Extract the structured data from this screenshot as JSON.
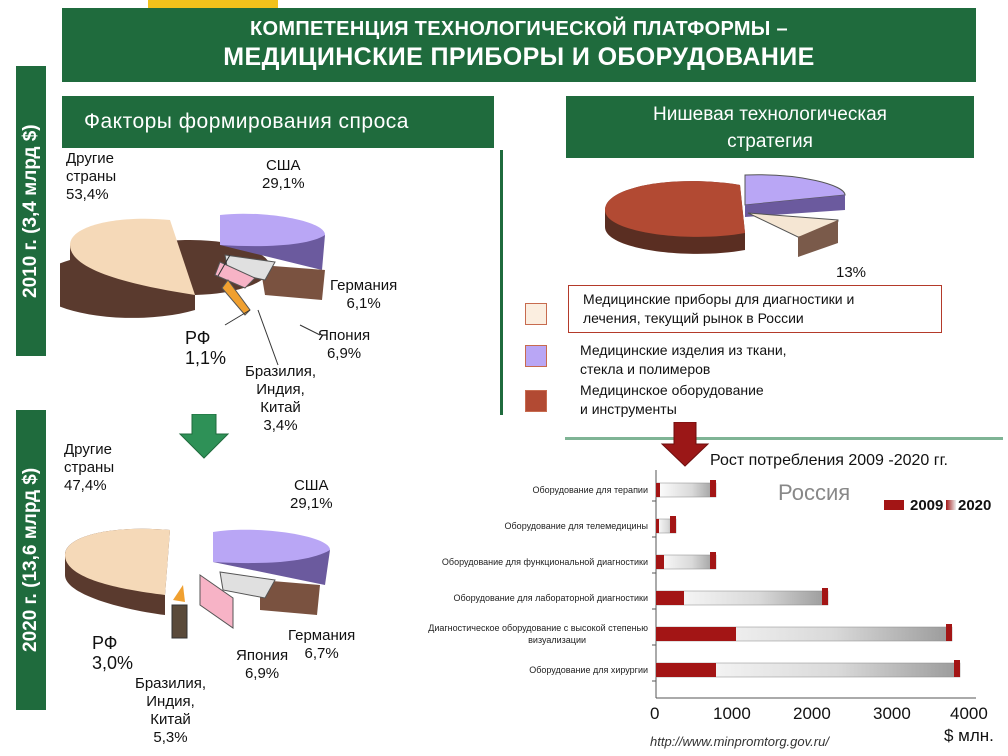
{
  "header": {
    "line1": "КОМПЕТЕНЦИЯ ТЕХНОЛОГИЧЕСКОЙ ПЛАТФОРМЫ –",
    "line2": "МЕДИЦИНСКИЕ ПРИБОРЫ И ОБОРУДОВАНИЕ"
  },
  "side": {
    "y2010": "2010 г. (3,4 млрд $)",
    "y2020": "2020 г. (13,6 млрд $)"
  },
  "factors_title": "Факторы формирования спроса",
  "niche_title_l1": "Нишевая технологическая",
  "niche_title_l2": "стратегия",
  "pie2010": {
    "other_l1": "Другие",
    "other_l2": "страны",
    "other_l3": "53,4%",
    "usa_l1": "США",
    "usa_l2": "29,1%",
    "germany_l1": "Германия",
    "germany_l2": "6,1%",
    "japan_l1": "Япония",
    "japan_l2": "6,9%",
    "rf_l1": "РФ",
    "rf_l2": "1,1%",
    "bic_l1": "Бразилия,",
    "bic_l2": "Индия,",
    "bic_l3": "Китай",
    "bic_l4": "3,4%"
  },
  "pie2020": {
    "other_l1": "Другие",
    "other_l2": "страны",
    "other_l3": "47,4%",
    "usa_l1": "США",
    "usa_l2": "29,1%",
    "germany_l1": "Германия",
    "germany_l2": "6,7%",
    "japan_l1": "Япония",
    "japan_l2": "6,9%",
    "rf_l1": "РФ",
    "rf_l2": "3,0%",
    "bic_l1": "Бразилия,",
    "bic_l2": "Индия,",
    "bic_l3": "Китай",
    "bic_l4": "5,3%"
  },
  "niche_pie": {
    "label": "13%"
  },
  "legend": {
    "item1_l1": "Медицинские приборы для диагностики и",
    "item1_l2": "лечения, текущий рынок в России",
    "item2_l1": "Медицинские изделия из ткани,",
    "item2_l2": "стекла и полимеров",
    "item3_l1": "Медицинское оборудование",
    "item3_l2": "и инструменты"
  },
  "growth": {
    "title": "Рост потребления 2009 -2020 гг.",
    "region": "Россия",
    "unit": "$ млн.",
    "url": "http://www.minpromtorg.gov.ru/"
  },
  "colors": {
    "green": "#1f6b3d",
    "other": "#f5d9b8",
    "usa": "#a98ef2",
    "equipment": "#b24a33",
    "bar2009": "#a31515",
    "bar2020": "#d8d8d8"
  },
  "chart_data": [
    {
      "type": "pie",
      "title": "",
      "categories": [
        "Другие страны",
        "США",
        "Германия",
        "Япония",
        "Бразилия, Индия, Китай",
        "РФ"
      ],
      "values": [
        53.4,
        29.1,
        6.1,
        6.9,
        3.4,
        1.1
      ]
    },
    {
      "type": "pie",
      "title": "",
      "categories": [
        "Другие страны",
        "США",
        "Германия",
        "Япония",
        "Бразилия, Индия, Китай",
        "РФ"
      ],
      "values": [
        47.4,
        29.1,
        6.7,
        6.9,
        5.3,
        3.0
      ]
    },
    {
      "type": "pie",
      "title": "",
      "categories": [
        "Медицинские приборы для диагностики и лечения, текущий рынок в России",
        "Медицинские изделия из ткани, стекла и полимеров",
        "Медицинское оборудование и инструменты"
      ],
      "values": [
        13,
        12,
        75
      ]
    },
    {
      "type": "bar",
      "title": "Рост потребления 2009 -2020 гг.",
      "orientation": "horizontal",
      "categories": [
        "Оборудование для терапии",
        "Оборудование для телемедицины",
        "Оборудование для функциональной диагностики",
        "Оборудование для лабораторной диагностики",
        "Диагностическое оборудование с высокой степенью визуализации",
        "Оборудование для хирургии"
      ],
      "series": [
        {
          "name": "2009",
          "values": [
            50,
            20,
            100,
            350,
            1000,
            750
          ]
        },
        {
          "name": "2020",
          "values": [
            750,
            250,
            750,
            2150,
            3700,
            3800
          ]
        }
      ],
      "xlim": [
        0,
        4000
      ],
      "xticks": [
        "0",
        "1000",
        "2000",
        "3000",
        "4000"
      ],
      "xlabel": "$ млн.",
      "legend": "top-right"
    }
  ]
}
